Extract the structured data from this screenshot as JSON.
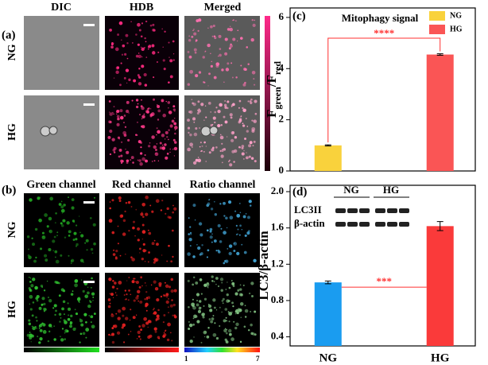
{
  "figure": {
    "panel_a": {
      "label": "(a)",
      "columns": [
        "DIC",
        "HDB",
        "Merged"
      ],
      "rows": [
        "NG",
        "HG"
      ]
    },
    "panel_b": {
      "label": "(b)",
      "columns": [
        "Green channel",
        "Red channel",
        "Ratio channel"
      ],
      "rows": [
        "NG",
        "HG"
      ],
      "ratio_scale": [
        "1",
        "7"
      ]
    },
    "blot": {
      "lanes": [
        "NG",
        "HG"
      ],
      "bands": [
        "LC3II",
        "β-actin"
      ]
    }
  },
  "chart_data": [
    {
      "type": "bar",
      "panel": "(c)",
      "title": "Mitophagy signal",
      "ylabel": [
        "F",
        "green",
        "/F",
        "red"
      ],
      "series": [
        {
          "name": "NG",
          "color": "#f9d23c",
          "values": [
            1.0
          ],
          "errors": [
            0.02
          ]
        },
        {
          "name": "HG",
          "color": "#fa5555",
          "values": [
            4.55
          ],
          "errors": [
            0.03
          ]
        }
      ],
      "ylim": [
        0,
        6.37
      ],
      "yticks": [
        0,
        2,
        4,
        6
      ],
      "annotation": "****",
      "legend": "upper right"
    },
    {
      "type": "bar",
      "panel": "(d)",
      "ylabel": "LC3/β-actin",
      "categories": [
        "NG",
        "HG"
      ],
      "values": [
        1.0,
        1.62
      ],
      "errors": [
        0.015,
        0.05
      ],
      "colors": [
        "#1a9cf0",
        "#fa3a3a"
      ],
      "ylim": [
        0.3,
        2.07
      ],
      "yticks": [
        {
          "value": 0.4,
          "label": "0.4"
        },
        {
          "value": 0.8,
          "label": "0.8"
        },
        {
          "value": 1.2,
          "label": "1.2"
        },
        {
          "value": 1.6,
          "label": "1.6"
        },
        {
          "value": 2.0,
          "label": "2.0"
        }
      ],
      "annotation": "***"
    }
  ]
}
